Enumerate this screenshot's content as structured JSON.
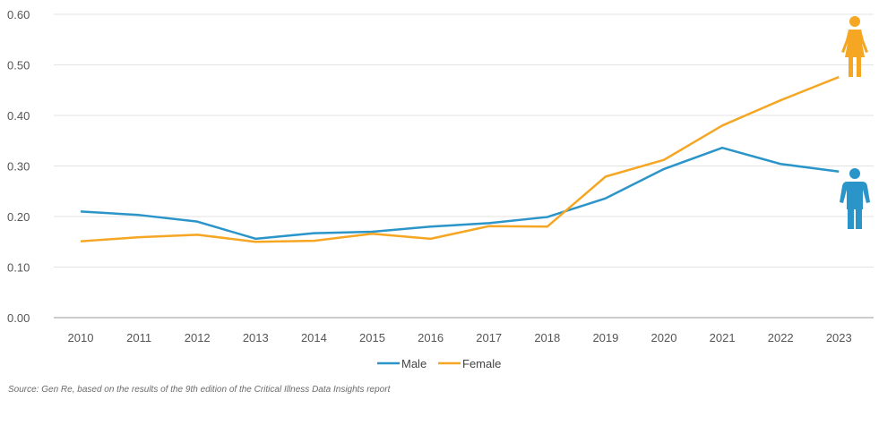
{
  "chart_data": {
    "type": "line",
    "categories": [
      "2010",
      "2011",
      "2012",
      "2013",
      "2014",
      "2015",
      "2016",
      "2017",
      "2018",
      "2019",
      "2020",
      "2021",
      "2022",
      "2023"
    ],
    "series": [
      {
        "name": "Male",
        "color": "#2b95c9",
        "values": [
          0.21,
          0.203,
          0.19,
          0.156,
          0.167,
          0.17,
          0.18,
          0.187,
          0.199,
          0.236,
          0.294,
          0.336,
          0.304,
          0.289
        ]
      },
      {
        "name": "Female",
        "color": "#f5a623",
        "values": [
          0.151,
          0.159,
          0.164,
          0.15,
          0.152,
          0.166,
          0.156,
          0.181,
          0.18,
          0.279,
          0.312,
          0.38,
          0.43,
          0.476
        ]
      }
    ],
    "y_ticks": [
      "0.00",
      "0.10",
      "0.20",
      "0.30",
      "0.40",
      "0.50",
      "0.60"
    ],
    "ylim": [
      0,
      0.6
    ],
    "grid": "horizontal",
    "legend_position": "bottom-center",
    "title": "",
    "xlabel": "",
    "ylabel": ""
  },
  "icons": {
    "female": {
      "name": "female-person-icon",
      "color": "#f5a623"
    },
    "male": {
      "name": "male-person-icon",
      "color": "#2b95c9"
    }
  },
  "source_note": "Source: Gen Re, based on the results of the 9th edition of the Critical Illness Data Insights report"
}
